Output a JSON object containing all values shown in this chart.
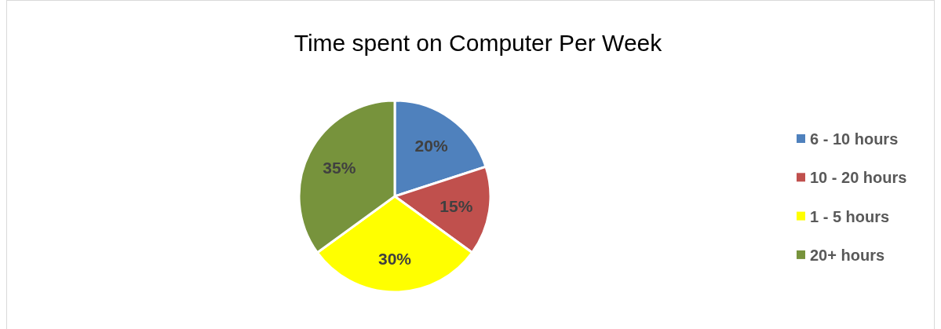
{
  "chart_data": {
    "type": "pie",
    "title": "Time spent on Computer Per Week",
    "categories": [
      "6 - 10 hours",
      "10 - 20 hours",
      "1 - 5 hours",
      "20+ hours"
    ],
    "values": [
      20,
      15,
      30,
      35
    ],
    "colors": [
      "#4f81bd",
      "#c0504d",
      "#ffff00",
      "#77933c"
    ],
    "value_labels": [
      "20%",
      "15%",
      "30%",
      "35%"
    ],
    "legend": "right"
  }
}
